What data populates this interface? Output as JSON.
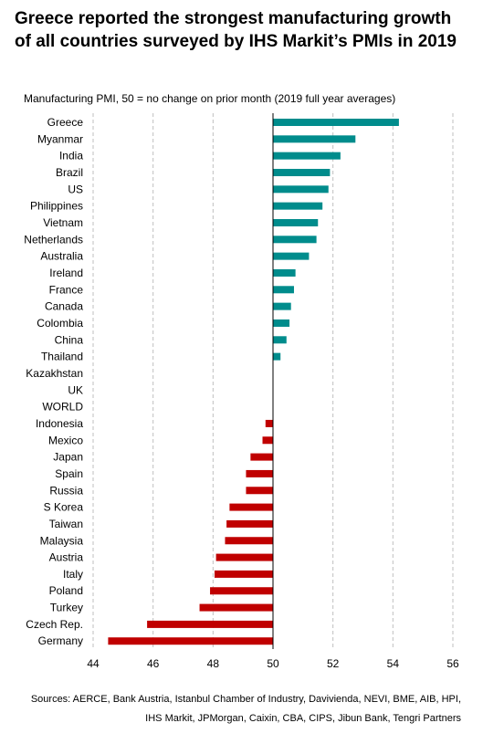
{
  "title": "Greece reported the strongest manufacturing growth of all countries surveyed by IHS Markit’s PMIs in 2019",
  "subtitle": "Manufacturing  PMI, 50 = no change on prior month (2019 full year averages)",
  "source": "Sources: AERCE, Bank Austria, Istanbul Chamber of Industry, Davivienda, NEVI, BME, AIB, HPI, IHS Markit, JPMorgan, Caixin, CBA, CIPS, Jibun Bank, Tengri Partners",
  "colors": {
    "positive": "#008C8C",
    "negative": "#C00000",
    "grid": "#BFBFBF",
    "axis": "#000000"
  },
  "chart_data": {
    "type": "bar",
    "orientation": "horizontal",
    "baseline": 50,
    "xlim": [
      44,
      56
    ],
    "xticks": [
      "44",
      "46",
      "48",
      "50",
      "52",
      "54",
      "56"
    ],
    "grid": "vertical-dashed",
    "categories": [
      "Greece",
      "Myanmar",
      "India",
      "Brazil",
      "US",
      "Philippines",
      "Vietnam",
      "Netherlands",
      "Australia",
      "Ireland",
      "France",
      "Canada",
      "Colombia",
      "China",
      "Thailand",
      "Kazakhstan",
      "UK",
      "WORLD",
      "Indonesia",
      "Mexico",
      "Japan",
      "Spain",
      "Russia",
      "S Korea",
      "Taiwan",
      "Malaysia",
      "Austria",
      "Italy",
      "Poland",
      "Turkey",
      "Czech Rep.",
      "Germany"
    ],
    "values": [
      54.2,
      52.75,
      52.25,
      51.9,
      51.85,
      51.65,
      51.5,
      51.45,
      51.2,
      50.75,
      50.7,
      50.6,
      50.55,
      50.45,
      50.25,
      50.0,
      50.0,
      50.0,
      49.75,
      49.65,
      49.25,
      49.1,
      49.1,
      48.55,
      48.45,
      48.4,
      48.1,
      48.05,
      47.9,
      47.55,
      45.8,
      44.5
    ]
  }
}
